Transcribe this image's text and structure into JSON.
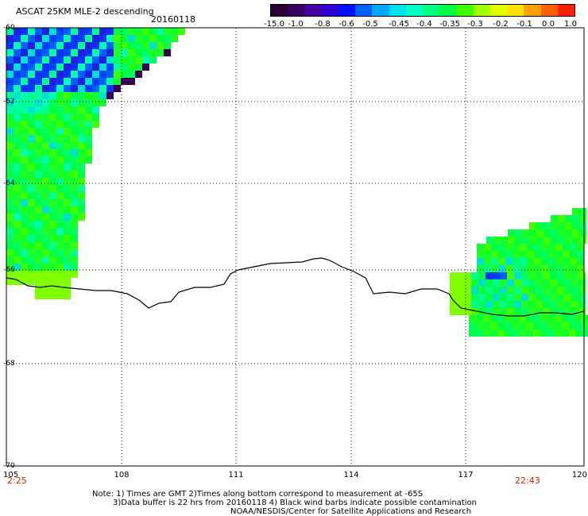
{
  "title": "ASCAT 25KM MLE-2 descending",
  "date": "20160118",
  "colorbar": {
    "labels": [
      "-15.0",
      "-1.0",
      "-0.8",
      "-0.6",
      "-0.5",
      "-0.45",
      "-0.4",
      "-0.35",
      "-0.3",
      "-0.2",
      "-0.1",
      "0.0",
      "1.0"
    ],
    "colors": [
      "#2a0030",
      "#3a0060",
      "#4800a0",
      "#3000d0",
      "#0010ff",
      "#0060ff",
      "#00a8ff",
      "#00e0f0",
      "#00ffc0",
      "#00ff80",
      "#00ff40",
      "#40ff00",
      "#a0ff00",
      "#e0ff00",
      "#ffe000",
      "#ffa000",
      "#ff6000",
      "#ff2000"
    ]
  },
  "axes": {
    "x_ticks": [
      "105",
      "108",
      "111",
      "114",
      "117",
      "120"
    ],
    "y_ticks": [
      "-60",
      "-62",
      "-64",
      "-66",
      "-68",
      "-70"
    ]
  },
  "time_labels": {
    "left": "2:25",
    "right": "22:43",
    "color": "#cc2200"
  },
  "notes": [
    "Note: 1) Times are GMT 2)Times along bottom correspond to measurement at -65S",
    "3)Data buffer is 22 hrs from 20160118 4) Black wind barbs indicate possible contamination",
    "NOAA/NESDIS/Center for Satellite Applications and Research"
  ]
}
